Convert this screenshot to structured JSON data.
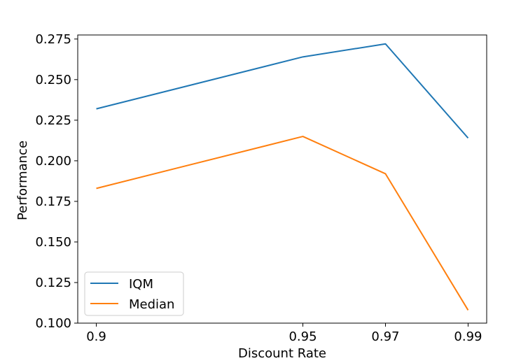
{
  "chart_data": {
    "type": "line",
    "x": [
      0.9,
      0.95,
      0.97,
      0.99
    ],
    "xticks": [
      "0.9",
      "0.95",
      "0.97",
      "0.99"
    ],
    "xlabel": "Discount Rate",
    "ylabel": "Performance",
    "ylim": [
      0.1,
      0.2775
    ],
    "yticks": [
      "0.100",
      "0.125",
      "0.150",
      "0.175",
      "0.200",
      "0.225",
      "0.250",
      "0.275"
    ],
    "grid": false,
    "legend_position": "lower-left",
    "series": [
      {
        "name": "IQM",
        "color": "#1f77b4",
        "values": [
          0.232,
          0.264,
          0.272,
          0.214
        ]
      },
      {
        "name": "Median",
        "color": "#ff7f0e",
        "values": [
          0.183,
          0.215,
          0.192,
          0.108
        ]
      }
    ]
  }
}
